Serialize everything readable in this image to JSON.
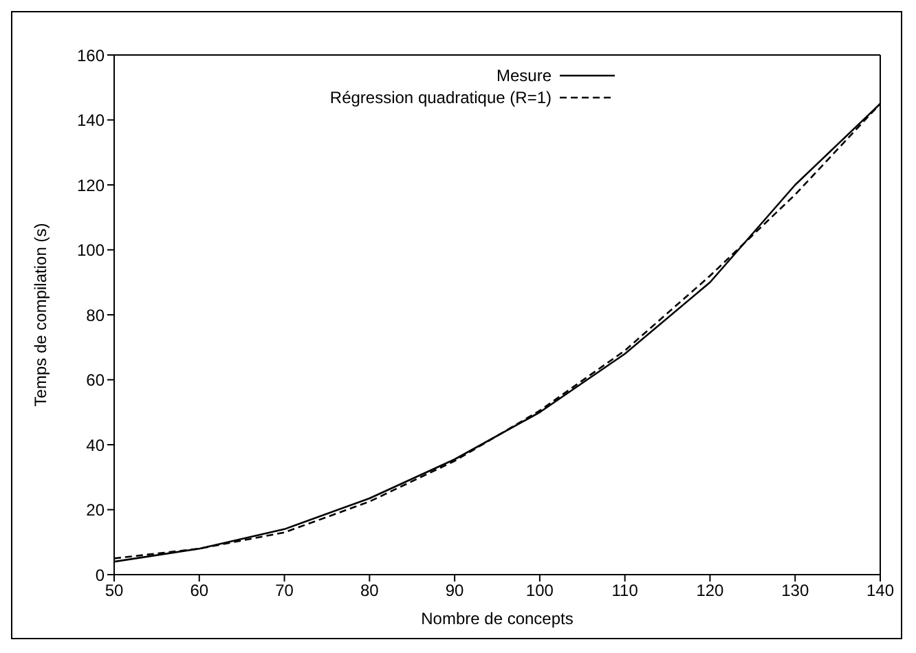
{
  "chart_data": {
    "type": "line",
    "xlabel": "Nombre de concepts",
    "ylabel": "Temps de compilation (s)",
    "x": [
      50,
      60,
      70,
      80,
      90,
      100,
      110,
      120,
      130,
      140
    ],
    "series": [
      {
        "name": "Mesure",
        "color": "#000000",
        "line_style": "solid",
        "values": [
          4,
          8,
          14,
          23.5,
          35.5,
          50,
          68,
          90,
          120,
          145
        ]
      },
      {
        "name": "Régression quadratique (R=1)",
        "color": "#000000",
        "line_style": "dashed",
        "values": [
          5,
          8,
          13,
          22.5,
          35,
          50.5,
          69,
          92,
          117,
          145
        ]
      }
    ],
    "xlim": [
      50,
      140
    ],
    "xticks": [
      50,
      60,
      70,
      80,
      90,
      100,
      110,
      120,
      130,
      140
    ],
    "ylim": [
      0,
      160
    ],
    "yticks": [
      0,
      20,
      40,
      60,
      80,
      100,
      120,
      140,
      160
    ],
    "grid": false,
    "legend": "top",
    "marker": "none"
  }
}
